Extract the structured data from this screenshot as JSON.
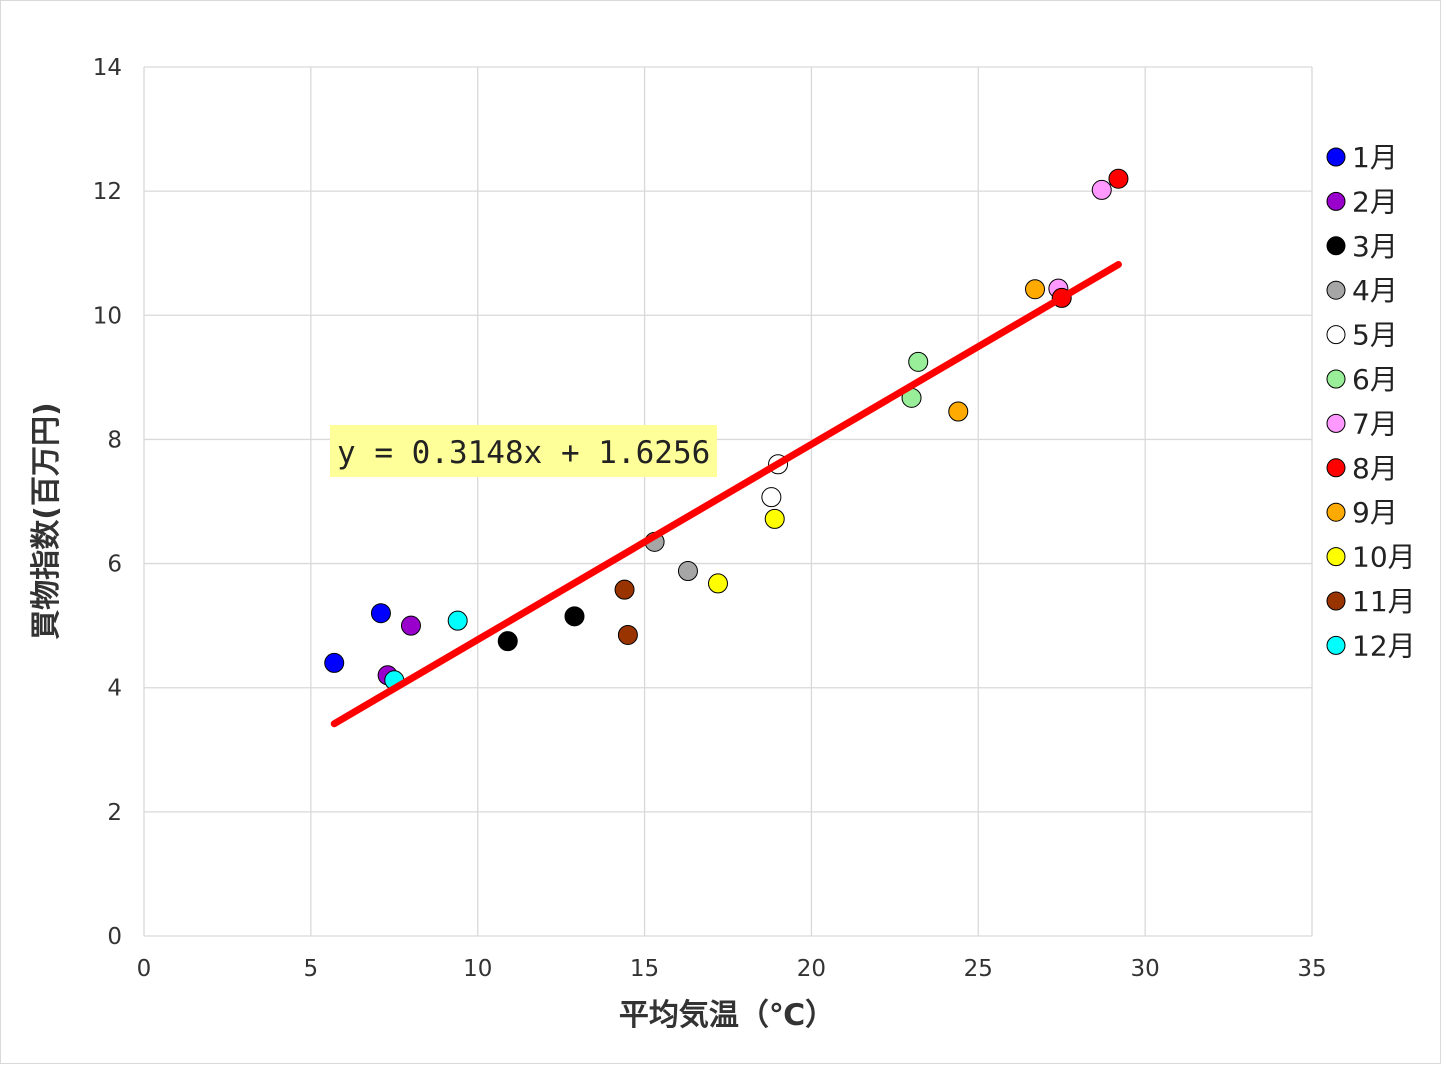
{
  "chart_data": {
    "type": "scatter",
    "xlabel": "平均気温（℃）",
    "ylabel": "買物指数(百万円)",
    "xlim": [
      0,
      35
    ],
    "ylim": [
      0,
      14
    ],
    "x_ticks": [
      "0",
      "5",
      "10",
      "15",
      "20",
      "25",
      "30",
      "35"
    ],
    "y_ticks": [
      "0",
      "2",
      "4",
      "6",
      "8",
      "10",
      "12",
      "14"
    ],
    "grid": true,
    "legend_position": "right",
    "series": [
      {
        "name": "1月",
        "color": "#0000ff",
        "points": [
          [
            5.7,
            4.4
          ],
          [
            7.1,
            5.2
          ]
        ]
      },
      {
        "name": "2月",
        "color": "#9900cc",
        "points": [
          [
            7.3,
            4.2
          ],
          [
            8.0,
            5.0
          ]
        ]
      },
      {
        "name": "3月",
        "color": "#000000",
        "points": [
          [
            10.9,
            4.75
          ],
          [
            12.9,
            5.15
          ]
        ]
      },
      {
        "name": "4月",
        "color": "#a6a6a6",
        "points": [
          [
            15.3,
            6.35
          ],
          [
            16.3,
            5.88
          ]
        ]
      },
      {
        "name": "5月",
        "color": "#ffffff",
        "points": [
          [
            18.8,
            7.07
          ],
          [
            19.0,
            7.6
          ]
        ]
      },
      {
        "name": "6月",
        "color": "#99ee99",
        "points": [
          [
            23.0,
            8.67
          ],
          [
            23.2,
            9.25
          ]
        ]
      },
      {
        "name": "7月",
        "color": "#ff99ff",
        "points": [
          [
            27.4,
            10.43
          ],
          [
            28.7,
            12.02
          ]
        ]
      },
      {
        "name": "8月",
        "color": "#ff0000",
        "points": [
          [
            27.5,
            10.28
          ],
          [
            29.2,
            12.2
          ]
        ]
      },
      {
        "name": "9月",
        "color": "#ffaa00",
        "points": [
          [
            24.4,
            8.45
          ],
          [
            26.7,
            10.42
          ]
        ]
      },
      {
        "name": "10月",
        "color": "#ffff00",
        "points": [
          [
            17.2,
            5.68
          ],
          [
            18.9,
            6.72
          ]
        ]
      },
      {
        "name": "11月",
        "color": "#993300",
        "points": [
          [
            14.4,
            5.58
          ],
          [
            14.5,
            4.85
          ]
        ]
      },
      {
        "name": "12月",
        "color": "#00ffff",
        "points": [
          [
            7.5,
            4.12
          ],
          [
            9.4,
            5.08
          ]
        ]
      }
    ],
    "trendline": {
      "slope": 0.3148,
      "intercept": 1.6256,
      "x_range": [
        5.7,
        29.2
      ],
      "color": "#ff0000",
      "equation_label": "y = 0.3148x + 1.6256",
      "label_bg": "#ffff99"
    }
  }
}
